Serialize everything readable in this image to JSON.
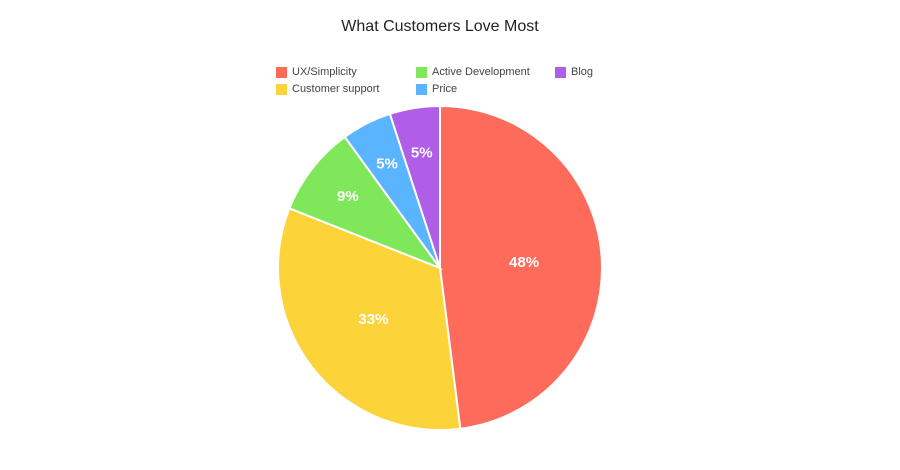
{
  "chart_data": {
    "type": "pie",
    "title": "What Customers Love Most",
    "legend_position": "top",
    "slices": [
      {
        "label": "UX/Simplicity",
        "value": 48,
        "display": "48%",
        "color": "#ff6b5b"
      },
      {
        "label": "Customer support",
        "value": 33,
        "display": "33%",
        "color": "#fcd43a"
      },
      {
        "label": "Active Development",
        "value": 9,
        "display": "9%",
        "color": "#7fe85a"
      },
      {
        "label": "Price",
        "value": 5,
        "display": "5%",
        "color": "#5ab4ff"
      },
      {
        "label": "Blog",
        "value": 5,
        "display": "5%",
        "color": "#b05ee8"
      }
    ],
    "legend_order": [
      "UX/Simplicity",
      "Active Development",
      "Blog",
      "Customer support",
      "Price"
    ]
  }
}
